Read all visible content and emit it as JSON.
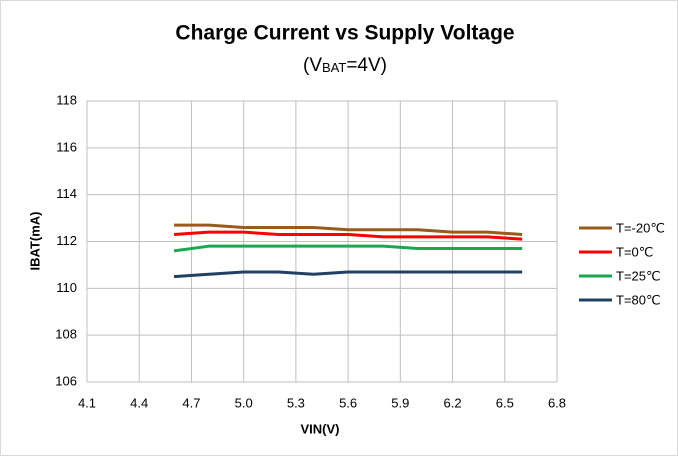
{
  "chart_data": {
    "type": "line",
    "title": "Charge Current vs Supply Voltage",
    "subtitle": [
      "(V",
      "BAT",
      "=4V)"
    ],
    "x_label": "VIN(V)",
    "y_label": "IBAT(mA)",
    "x": [
      4.6,
      4.8,
      5.0,
      5.2,
      5.4,
      5.6,
      5.8,
      6.0,
      6.2,
      6.4,
      6.6
    ],
    "series": [
      {
        "name": "T=-20℃",
        "color": "#9a5a1c",
        "values": [
          112.7,
          112.7,
          112.6,
          112.6,
          112.6,
          112.5,
          112.5,
          112.5,
          112.4,
          112.4,
          112.3
        ]
      },
      {
        "name": "T=0℃",
        "color": "#ff0000",
        "values": [
          112.3,
          112.4,
          112.4,
          112.3,
          112.3,
          112.3,
          112.2,
          112.2,
          112.2,
          112.2,
          112.1
        ]
      },
      {
        "name": "T=25℃",
        "color": "#19a84f",
        "values": [
          111.6,
          111.8,
          111.8,
          111.8,
          111.8,
          111.8,
          111.8,
          111.7,
          111.7,
          111.7,
          111.7
        ]
      },
      {
        "name": "T=80℃",
        "color": "#233f62",
        "values": [
          110.5,
          110.6,
          110.7,
          110.7,
          110.6,
          110.7,
          110.7,
          110.7,
          110.7,
          110.7,
          110.7
        ]
      }
    ],
    "xlim": [
      4.1,
      6.8
    ],
    "xticks": [
      4.1,
      4.4,
      4.7,
      {
        "value": 5,
        "label": "5.0"
      },
      5.3,
      5.6,
      5.9,
      6.2,
      6.5,
      6.8
    ],
    "ylim": [
      106,
      118
    ],
    "yticks": [
      106,
      108,
      110,
      112,
      114,
      116,
      118
    ],
    "grid": true,
    "legend": "right"
  }
}
